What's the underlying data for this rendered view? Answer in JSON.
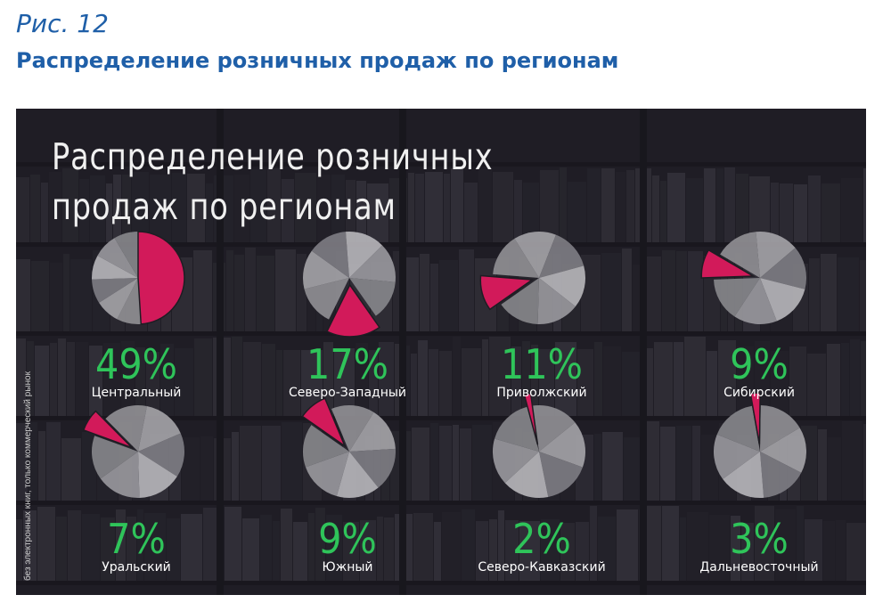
{
  "figure": {
    "label": "Рис. 12",
    "title": "Распределение розничных продаж по регионам"
  },
  "panel": {
    "title_line1": "Распределение розничных",
    "title_line2": "продаж по регионам",
    "source_note": "без электронных книг, только коммерческий рынок"
  },
  "colors": {
    "accent": "#d21a5a",
    "percent_text": "#2fc45a",
    "pie_grays": [
      "#8f8e93",
      "#a3a2a6",
      "#7d7c82",
      "#b5b4b8",
      "#98979c",
      "#86858a",
      "#acabaf"
    ],
    "panel_bg": "#24232a",
    "heading": "#1f5fa8"
  },
  "chart_data": {
    "type": "pie",
    "title": "Распределение розничных продаж по регионам",
    "unit": "%",
    "categories": [
      "Центральный",
      "Северо-Западный",
      "Приволжский",
      "Сибирский",
      "Уральский",
      "Южный",
      "Северо-Кавказский",
      "Дальневосточный"
    ],
    "values": [
      49,
      17,
      11,
      9,
      7,
      9,
      2,
      3
    ],
    "labels": [
      "49%",
      "17%",
      "11%",
      "9%",
      "7%",
      "9%",
      "2%",
      "3%"
    ]
  }
}
